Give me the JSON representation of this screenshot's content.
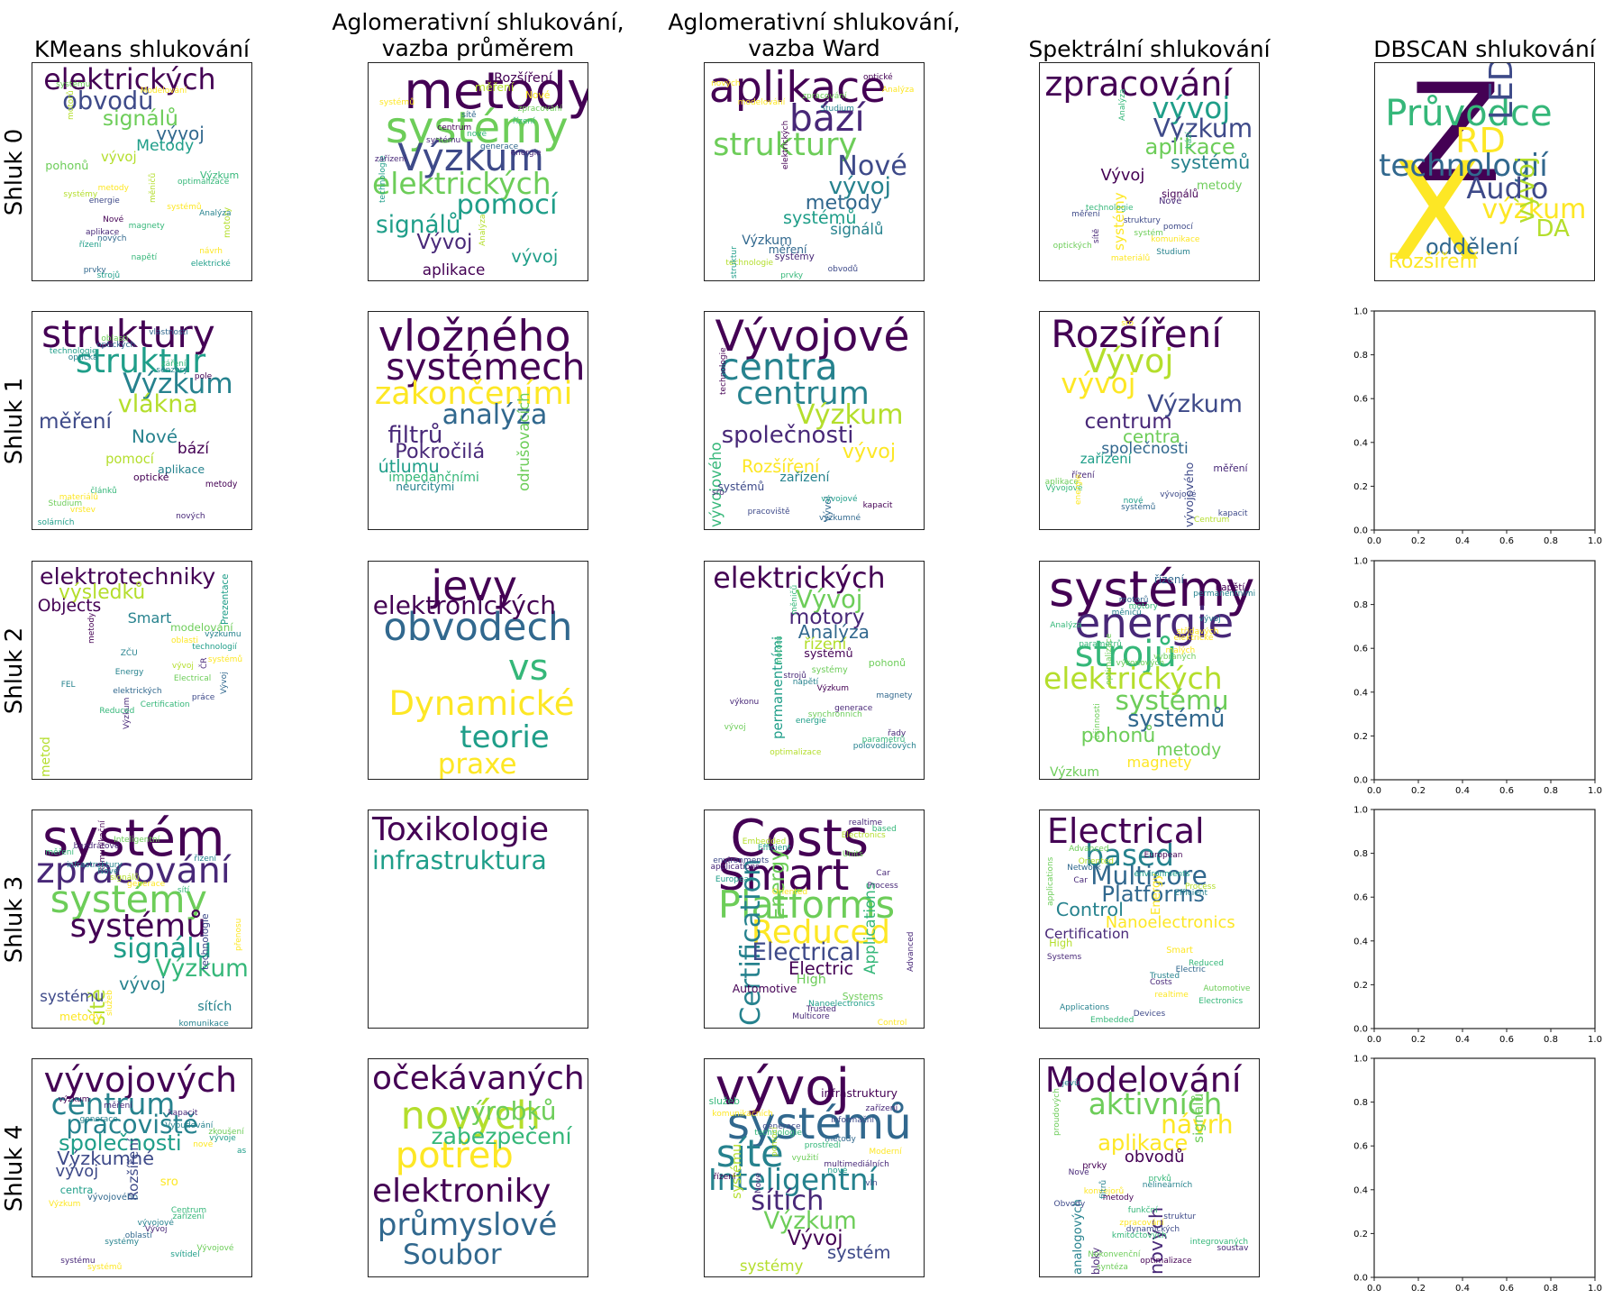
{
  "columns": [
    "KMeans shlukování",
    "Aglomerativní shlukování,\nvazba průměrem",
    "Aglomerativní shlukování,\nvazba Ward",
    "Spektrální shlukování",
    "DBSCAN shlukování"
  ],
  "rows": [
    "Shluk 0",
    "Shluk 1",
    "Shluk 2",
    "Shluk 3",
    "Shluk 4"
  ],
  "empty_axes_ticks": [
    "0.0",
    "0.2",
    "0.4",
    "0.6",
    "0.8",
    "1.0"
  ],
  "clouds": [
    [
      [
        "elektrických",
        "obvodů",
        "signálů",
        "vývoj",
        "Metody",
        "vývoj",
        "pohonů",
        "Výzkum",
        "motory",
        "optimalizace",
        "metody",
        "systémy",
        "energie",
        "systémů",
        "měničů",
        "Analýza",
        "Nové",
        "magnety",
        "aplikace",
        "nových",
        "řízení",
        "návrh",
        "napětí",
        "elektrické",
        "prvky",
        "strojů",
        "systému",
        "motorů",
        "Modelování"
      ],
      [
        "metody",
        "systémy",
        "Výzkum",
        "elektrických",
        "pomocí",
        "signálů",
        "Vývoj",
        "vývoj",
        "aplikace",
        "Rozšíření",
        "měření",
        "Nové",
        "systémů",
        "zpracování",
        "sítě",
        "řízení",
        "centrum",
        "technologie",
        "nové",
        "systému",
        "generace",
        "energie",
        "zařízení",
        "Analýza"
      ],
      [
        "aplikace",
        "bází",
        "struktury",
        "Nové",
        "vývoj",
        "metody",
        "systémů",
        "signálů",
        "Výzkum",
        "měření",
        "systémy",
        "technologie",
        "obvodů",
        "prvky",
        "optické",
        "nových",
        "struktur",
        "Analýza",
        "zpracování",
        "modelování",
        "Studium",
        "elektrických"
      ],
      [
        "zpracování",
        "vývoj",
        "Výzkum",
        "aplikace",
        "systémů",
        "Vývoj",
        "systémy",
        "metody",
        "signálů",
        "Nové",
        "sítě",
        "technologie",
        "bází",
        "měření",
        "struktury",
        "pomocí",
        "systém",
        "komunikace",
        "optických",
        "Studium",
        "materiálů",
        "Analýza"
      ],
      [
        "Z",
        "X",
        "Průvodce",
        "RD",
        "LED",
        "technologií",
        "Audio",
        "výzkum",
        "vývoj",
        "DA",
        "oddělení",
        "Rozšíření"
      ]
    ],
    [
      [
        "struktury",
        "struktur",
        "Výzkum",
        "vlákna",
        "měření",
        "Nové",
        "bází",
        "pomocí",
        "aplikace",
        "optické",
        "metody",
        "článků",
        "materiálů",
        "Studium",
        "vrstev",
        "nových",
        "solárních",
        "vlastnosti",
        "oblasti",
        "optických",
        "technologie",
        "optická",
        "záření",
        "senzory",
        "pole"
      ],
      [
        "vložného",
        "systémech",
        "zakončeními",
        "analýza",
        "filtrů",
        "Pokročilá",
        "útlumu",
        "odrušovacích",
        "impedančními",
        "neurčitými"
      ],
      [
        "Vývojové",
        "centra",
        "centrum",
        "Výzkum",
        "společnosti",
        "vývoj",
        "Rozšíření",
        "vývojového",
        "zařízení",
        "systémů",
        "Vývoj",
        "sro",
        "vývojové",
        "technologie",
        "kapacit",
        "pracoviště",
        "výzkumné"
      ],
      [
        "Rozšíření",
        "Vývoj",
        "vývoj",
        "Výzkum",
        "centrum",
        "centra",
        "společnosti",
        "zařízení",
        "vývojového",
        "měření",
        "řízení",
        "aplikace",
        "Vývojové",
        "vývojové",
        "nové",
        "systémů",
        "kapacit",
        "energie",
        "Centrum",
        "sro"
      ],
      []
    ],
    [
      [
        "elektrotechniky",
        "výsledků",
        "Objects",
        "Smart",
        "metod",
        "modelování",
        "Prezentace",
        "Vývoj",
        "výzkumu",
        "oblasti",
        "technologií",
        "Výzkum",
        "ZČU",
        "systémů",
        "vývoj",
        "metody",
        "Energy",
        "Electrical",
        "FEL",
        "elektrických",
        "práce",
        "Certification",
        "Reduced",
        "ČR"
      ],
      [
        "jevy",
        "obvodech",
        "vs",
        "Dynamické",
        "teorie",
        "praxe",
        "elektronických"
      ],
      [
        "elektrických",
        "Vývoj",
        "motory",
        "Analýza",
        "řízení",
        "permanentními",
        "systémů",
        "pohonů",
        "systémy",
        "strojů",
        "napětí",
        "Výzkum",
        "magnety",
        "měničů",
        "výkonu",
        "generace",
        "synchronních",
        "energie",
        "vývoj",
        "řady",
        "parametrů",
        "polovodičových",
        "optimalizace",
        "motorů"
      ],
      [
        "systémy",
        "energie",
        "strojů",
        "elektrických",
        "systému",
        "systémů",
        "pohonů",
        "metody",
        "magnety",
        "Výzkum",
        "řízení",
        "napětí",
        "permanentními",
        "motorů",
        "motory",
        "měničů",
        "optimalizace",
        "vývoj",
        "Analýza",
        "střídavých",
        "elektrické",
        "účinnosti",
        "parametrů",
        "malých",
        "vybraných",
        "výkonových"
      ],
      []
    ],
    [
      [
        "systém",
        "zpracování",
        "systémy",
        "systémů",
        "signálu",
        "Výzkum",
        "sítě",
        "vývoj",
        "systému",
        "sítích",
        "metody",
        "technologie",
        "komunikace",
        "Inteligentní",
        "bezdrátové",
        "měření",
        "řízení",
        "přenosu",
        "služeb",
        "komunikační",
        "infrastruktury",
        "Nové",
        "signálů",
        "generace",
        "sítí"
      ],
      [
        "Toxikologie",
        "infrastruktura"
      ],
      [
        "Costs",
        "Smart",
        "Platforms",
        "Reduced",
        "Certification",
        "Electrical",
        "Energy",
        "Electric",
        "Applications",
        "High",
        "Automotive",
        "Systems",
        "Nanoelectronics",
        "Trusted",
        "Multicore",
        "Advanced",
        "Control",
        "realtime",
        "based",
        "Electronics",
        "Embedded",
        "Efficient",
        "Units",
        "environments",
        "applications",
        "Car",
        "European",
        "Process",
        "Oriented"
      ],
      [
        "Electrical",
        "based",
        "Multicore",
        "Platforms",
        "Control",
        "Nanoelectronics",
        "Certification",
        "Energy",
        "High",
        "Smart",
        "Systems",
        "Reduced",
        "Electric",
        "Trusted",
        "Costs",
        "Automotive",
        "realtime",
        "Electronics",
        "Applications",
        "Devices",
        "Embedded",
        "Advanced",
        "European",
        "Oriented",
        "Network",
        "environments",
        "applications",
        "Car",
        "Process",
        "Efficient"
      ],
      []
    ],
    [
      [
        "vývojových",
        "centrum",
        "pracoviště",
        "společnosti",
        "Výzkumné",
        "vývoj",
        "Rozšíření",
        "sro",
        "centra",
        "vývojového",
        "Výzkum",
        "Centrum",
        "zařízení",
        "vývojové",
        "Vývoj",
        "oblasti",
        "systémy",
        "Vývojové",
        "svítidel",
        "systému",
        "systémů",
        "výzkum",
        "měření",
        "kapacit",
        "generace",
        "Vybudování",
        "zkoušení",
        "vývoje",
        "nové",
        "as"
      ],
      [
        "očekávaných",
        "nových",
        "potřeb",
        "elektroniky",
        "průmyslové",
        "Soubor",
        "výrobků",
        "zabezpečení"
      ],
      [
        "vývoj",
        "systémů",
        "sítě",
        "Inteligentní",
        "sítích",
        "Výzkum",
        "Vývoj",
        "systém",
        "systémy",
        "systému",
        "infrastruktury",
        "služeb",
        "zařízení",
        "komunikačních",
        "informační",
        "generace",
        "technologie",
        "metody",
        "Nové",
        "prostředí",
        "Moderní",
        "využití",
        "multimediálních",
        "nové",
        "řízení",
        "pomocí",
        "vln"
      ],
      [
        "Modelování",
        "aktivních",
        "návrh",
        "aplikace",
        "nových",
        "obvodů",
        "signálů",
        "analogových",
        "bloky",
        "prvky",
        "Nové",
        "prvků",
        "nelineárních",
        "konvejorů",
        "proudových",
        "metody",
        "Obvody",
        "funkční",
        "struktur",
        "filtrů",
        "zpracování",
        "dynamických",
        "kmitočtových",
        "integrovaných",
        "soustav",
        "Nekonvenční",
        "optimalizace",
        "syntéza",
        "jevů"
      ],
      []
    ]
  ],
  "colors": {
    "viridis": [
      "#440154",
      "#482878",
      "#3e4a89",
      "#31688e",
      "#26828e",
      "#1f9e89",
      "#35b779",
      "#6dcd59",
      "#b4de2c",
      "#fde725"
    ],
    "frame": "#222222",
    "background": "#ffffff"
  }
}
